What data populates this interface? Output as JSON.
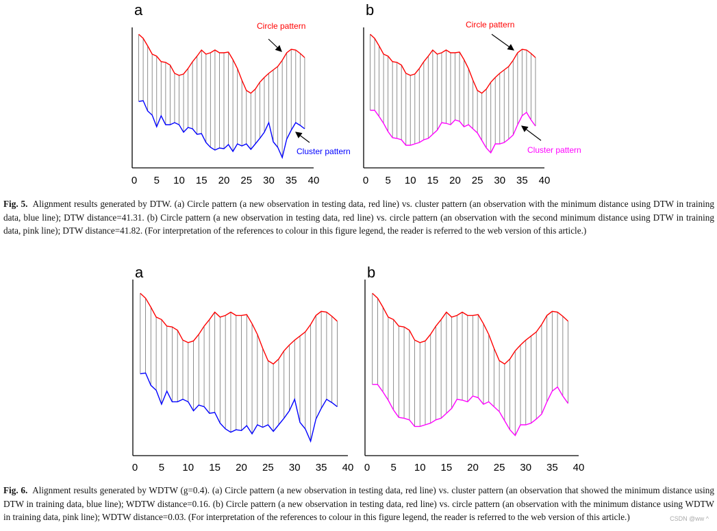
{
  "colors": {
    "circle": "#ff0000",
    "cluster_blue": "#0000ff",
    "cluster_pink": "#ff00ff",
    "warp_lines": "#808080",
    "axis": "#000000"
  },
  "figures": [
    {
      "caption_label": "Fig. 5.",
      "caption_text": "Alignment results generated by DTW. (a) Circle pattern (a new observation in testing data, red line) vs. cluster pattern (an observation with the minimum distance using DTW in training data, blue line); DTW distance=41.31. (b) Circle pattern (a new observation in testing data, red line) vs. circle pattern (an observation with the second minimum distance using DTW in training data, pink line); DTW distance=41.82. (For interpretation of the references to colour in this figure legend, the reader is referred to the web version of this article.)"
    },
    {
      "caption_label": "Fig. 6.",
      "caption_text": "Alignment results generated by WDTW (g=0.4). (a) Circle pattern (a new observation in testing data, red line) vs. cluster pattern (an observation that showed the minimum distance using DTW in training data, blue line); WDTW distance=0.16. (b) Circle pattern (a new observation in testing data, red line) vs. circle pattern (an observation with the minimum distance using WDTW in training data, pink line); WDTW distance=0.03. (For interpretation of the references to colour in this figure legend, the reader is referred to the web version of this article.)"
    }
  ],
  "watermark": "CSDN @ww ^",
  "series": {
    "circle": [
      193,
      187,
      176,
      164,
      161,
      153,
      152,
      148,
      136,
      133,
      135,
      143,
      153,
      161,
      170,
      164,
      166,
      170,
      166,
      166,
      167,
      156,
      143,
      126,
      111,
      107,
      113,
      123,
      130,
      136,
      141,
      146,
      155,
      166,
      171,
      170,
      165,
      159
    ],
    "cluster_blue": [
      95,
      96,
      81,
      75,
      58,
      74,
      61,
      61,
      64,
      61,
      50,
      57,
      55,
      47,
      48,
      35,
      28,
      24,
      27,
      26,
      32,
      22,
      33,
      30,
      33,
      25,
      33,
      41,
      50,
      64,
      36,
      28,
      13,
      40,
      53,
      64,
      60,
      55
    ],
    "cluster_pink": [
      82,
      82,
      73,
      63,
      51,
      42,
      41,
      39,
      31,
      31,
      33,
      35,
      39,
      41,
      47,
      53,
      64,
      63,
      61,
      68,
      66,
      58,
      61,
      55,
      49,
      38,
      27,
      20,
      33,
      33,
      35,
      40,
      46,
      61,
      74,
      79,
      68,
      59
    ]
  },
  "chart_data": [
    {
      "type": "line",
      "panel_label": "a",
      "figure": "Fig. 5",
      "method": "DTW",
      "x": [
        1,
        2,
        3,
        4,
        5,
        6,
        7,
        8,
        9,
        10,
        11,
        12,
        13,
        14,
        15,
        16,
        17,
        18,
        19,
        20,
        21,
        22,
        23,
        24,
        25,
        26,
        27,
        28,
        29,
        30,
        31,
        32,
        33,
        34,
        35,
        36,
        37,
        38
      ],
      "series": [
        {
          "name": "Circle pattern",
          "key": "circle",
          "color": "#ff0000"
        },
        {
          "name": "Cluster pattern",
          "key": "cluster_blue",
          "color": "#0000ff"
        }
      ],
      "xlim": [
        0,
        40
      ],
      "xticks": [
        "0",
        "5",
        "10",
        "15",
        "20",
        "25",
        "30",
        "35",
        "40"
      ],
      "annotations": [
        "Circle pattern",
        "Cluster pattern"
      ]
    },
    {
      "type": "line",
      "panel_label": "b",
      "figure": "Fig. 5",
      "method": "DTW",
      "series": [
        {
          "name": "Circle pattern",
          "key": "circle",
          "color": "#ff0000"
        },
        {
          "name": "Cluster pattern",
          "key": "cluster_pink",
          "color": "#ff00ff"
        }
      ],
      "xlim": [
        0,
        40
      ],
      "xticks": [
        "0",
        "5",
        "10",
        "15",
        "20",
        "25",
        "30",
        "35",
        "40"
      ],
      "annotations": [
        "Circle pattern",
        "Cluster pattern"
      ]
    },
    {
      "type": "line",
      "panel_label": "a",
      "figure": "Fig. 6",
      "method": "WDTW",
      "g": 0.4,
      "series": [
        {
          "key": "circle",
          "color": "#ff0000"
        },
        {
          "key": "cluster_blue",
          "color": "#0000ff"
        }
      ],
      "xlim": [
        0,
        40
      ],
      "xticks": [
        "0",
        "5",
        "10",
        "15",
        "20",
        "25",
        "30",
        "35",
        "40"
      ]
    },
    {
      "type": "line",
      "panel_label": "b",
      "figure": "Fig. 6",
      "method": "WDTW",
      "g": 0.4,
      "series": [
        {
          "key": "circle",
          "color": "#ff0000"
        },
        {
          "key": "cluster_pink",
          "color": "#ff00ff"
        }
      ],
      "xlim": [
        0,
        40
      ],
      "xticks": [
        "0",
        "5",
        "10",
        "15",
        "20",
        "25",
        "30",
        "35",
        "40"
      ]
    }
  ]
}
